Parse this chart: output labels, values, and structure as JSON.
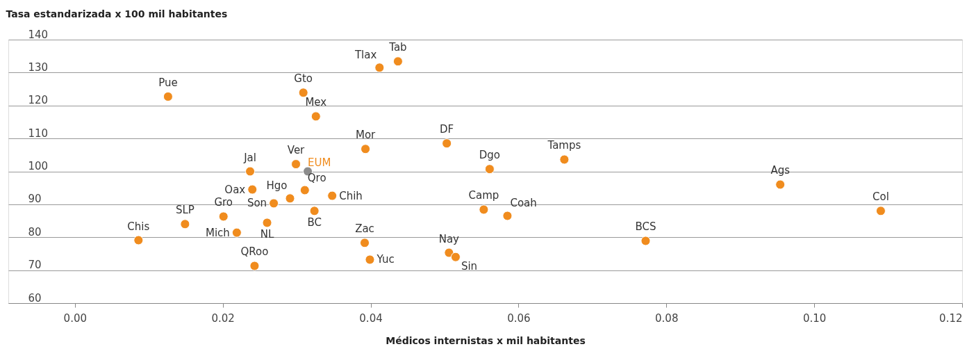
{
  "chart_data": {
    "type": "scatter",
    "xlabel": "Médicos internistas x mil habitantes",
    "ylabel": "Tasa estandarizada x 100 mil habitantes",
    "xlim": [
      -0.009,
      0.12
    ],
    "ylim": [
      60,
      140
    ],
    "xticks": [
      {
        "value": 0,
        "label": "0.00"
      },
      {
        "value": 0.02,
        "label": "0.02"
      },
      {
        "value": 0.04,
        "label": "0.04"
      },
      {
        "value": 0.06,
        "label": "0.06"
      },
      {
        "value": 0.08,
        "label": "0.08"
      },
      {
        "value": 0.1,
        "label": "0.10"
      },
      {
        "value": 0.12,
        "label": "0.12"
      }
    ],
    "yticks": [
      60,
      70,
      80,
      90,
      100,
      110,
      120,
      130,
      140
    ],
    "grid": "y",
    "marker": "circle",
    "series": [
      {
        "color": "#f08c1e",
        "x": [
          0.0126,
          0.0086,
          0.0149,
          0.0201,
          0.0219,
          0.0237,
          0.024,
          0.0243,
          0.026,
          0.0269,
          0.0291,
          0.0299,
          0.0311,
          0.0309,
          0.0326,
          0.0324,
          0.0348,
          0.0393,
          0.0392,
          0.0399,
          0.0412,
          0.0437,
          0.0503,
          0.0506,
          0.0515,
          0.0553,
          0.0561,
          0.0585,
          0.0662,
          0.0772,
          0.0954,
          0.109
        ],
        "values": [
          122.7,
          79.1,
          84.0,
          86.3,
          81.4,
          100.0,
          94.5,
          71.3,
          84.4,
          90.3,
          91.8,
          102.2,
          94.3,
          123.9,
          116.7,
          88.0,
          92.6,
          106.8,
          78.3,
          73.2,
          131.5,
          133.4,
          108.5,
          75.3,
          74.0,
          88.4,
          100.7,
          86.5,
          103.6,
          78.9,
          96.0,
          88.0
        ]
      },
      {
        "name": "EUM",
        "color": "#8c8c8c",
        "x": [
          0.0315
        ],
        "values": [
          100.0
        ]
      }
    ],
    "annotations": [
      {
        "text": "Pue",
        "x": 0.0126,
        "y": 122.7
      },
      {
        "text": "Chis",
        "x": 0.0086,
        "y": 79.1
      },
      {
        "text": "SLP",
        "x": 0.0149,
        "y": 84.0
      },
      {
        "text": "Gro",
        "x": 0.0201,
        "y": 86.3
      },
      {
        "text": "Mich",
        "x": 0.0219,
        "y": 81.4
      },
      {
        "text": "Jal",
        "x": 0.0237,
        "y": 100.0
      },
      {
        "text": "Oax",
        "x": 0.024,
        "y": 94.5
      },
      {
        "text": "QRoo",
        "x": 0.0243,
        "y": 71.3
      },
      {
        "text": "NL",
        "x": 0.026,
        "y": 84.4
      },
      {
        "text": "Son",
        "x": 0.0269,
        "y": 90.3
      },
      {
        "text": "Hgo",
        "x": 0.0291,
        "y": 91.8
      },
      {
        "text": "Ver",
        "x": 0.0299,
        "y": 102.2
      },
      {
        "text": "Qro",
        "x": 0.0311,
        "y": 94.3
      },
      {
        "text": "Gto",
        "x": 0.0309,
        "y": 123.9
      },
      {
        "text": "Mex",
        "x": 0.0326,
        "y": 116.7
      },
      {
        "text": "BC",
        "x": 0.0324,
        "y": 88.0
      },
      {
        "text": "Chih",
        "x": 0.0348,
        "y": 92.6
      },
      {
        "text": "Mor",
        "x": 0.0393,
        "y": 106.8
      },
      {
        "text": "Zac",
        "x": 0.0392,
        "y": 78.3
      },
      {
        "text": "Yuc",
        "x": 0.0399,
        "y": 73.2
      },
      {
        "text": "Tlax",
        "x": 0.0412,
        "y": 131.5
      },
      {
        "text": "Tab",
        "x": 0.0437,
        "y": 133.4
      },
      {
        "text": "DF",
        "x": 0.0503,
        "y": 108.5
      },
      {
        "text": "Nay",
        "x": 0.0506,
        "y": 75.3
      },
      {
        "text": "Sin",
        "x": 0.0515,
        "y": 74.0
      },
      {
        "text": "Camp",
        "x": 0.0553,
        "y": 88.4
      },
      {
        "text": "Dgo",
        "x": 0.0561,
        "y": 100.7
      },
      {
        "text": "Coah",
        "x": 0.0585,
        "y": 86.5
      },
      {
        "text": "Tamps",
        "x": 0.0662,
        "y": 103.6
      },
      {
        "text": "BCS",
        "x": 0.0772,
        "y": 78.9
      },
      {
        "text": "Ags",
        "x": 0.0954,
        "y": 96.0
      },
      {
        "text": "Col",
        "x": 0.109,
        "y": 88.0
      }
    ]
  }
}
